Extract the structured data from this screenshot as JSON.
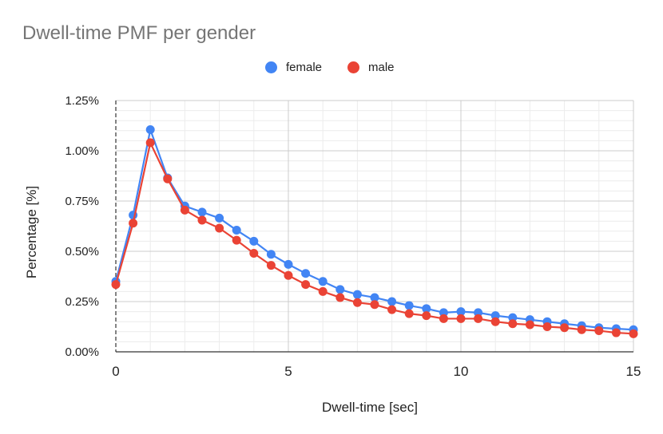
{
  "chart_data": {
    "type": "line",
    "title": "Dwell-time PMF per gender",
    "xlabel": "Dwell-time [sec]",
    "ylabel": "Percentage [%]",
    "xlim": [
      0,
      15
    ],
    "ylim": [
      0,
      1.25
    ],
    "x_ticks": [
      0,
      5,
      10,
      15
    ],
    "x_tick_labels": [
      "0",
      "5",
      "10",
      "15"
    ],
    "y_ticks": [
      0,
      0.25,
      0.5,
      0.75,
      1.0,
      1.25
    ],
    "y_tick_labels": [
      "0.00%",
      "0.25%",
      "0.50%",
      "0.75%",
      "1.00%",
      "1.25%"
    ],
    "grid": true,
    "legend_position": "top",
    "x": [
      0,
      0.5,
      1,
      1.5,
      2,
      2.5,
      3,
      3.5,
      4,
      4.5,
      5,
      5.5,
      6,
      6.5,
      7,
      7.5,
      8,
      8.5,
      9,
      9.5,
      10,
      10.5,
      11,
      11.5,
      12,
      12.5,
      13,
      13.5,
      14,
      14.5,
      15
    ],
    "series": [
      {
        "name": "female",
        "color": "#4285F4",
        "values": [
          0.35,
          0.68,
          1.105,
          0.865,
          0.725,
          0.695,
          0.665,
          0.605,
          0.55,
          0.485,
          0.435,
          0.39,
          0.35,
          0.31,
          0.285,
          0.27,
          0.25,
          0.23,
          0.215,
          0.195,
          0.2,
          0.195,
          0.18,
          0.17,
          0.16,
          0.15,
          0.14,
          0.13,
          0.12,
          0.115,
          0.11
        ]
      },
      {
        "name": "male",
        "color": "#EA4335",
        "values": [
          0.335,
          0.64,
          1.04,
          0.86,
          0.705,
          0.655,
          0.615,
          0.555,
          0.49,
          0.43,
          0.38,
          0.335,
          0.3,
          0.27,
          0.245,
          0.235,
          0.21,
          0.19,
          0.18,
          0.165,
          0.165,
          0.165,
          0.15,
          0.14,
          0.135,
          0.125,
          0.12,
          0.11,
          0.105,
          0.095,
          0.09
        ]
      }
    ]
  }
}
